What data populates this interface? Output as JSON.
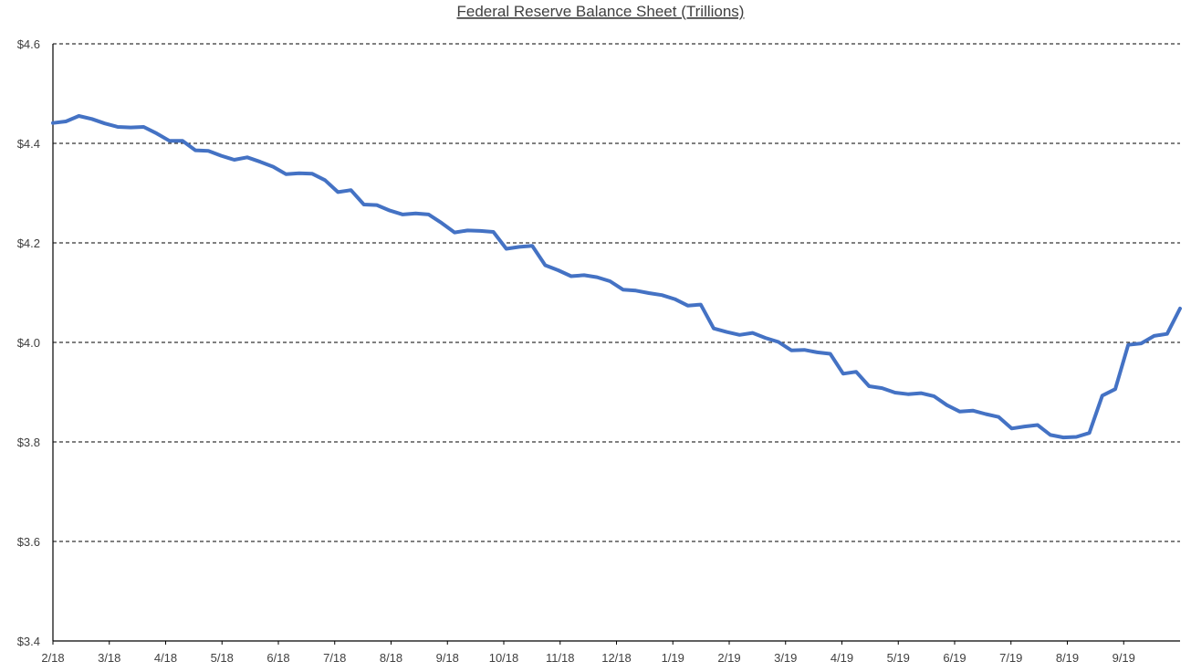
{
  "chart_data": {
    "type": "line",
    "title": "Federal Reserve Balance Sheet (Trillions)",
    "xlabel": "",
    "ylabel": "",
    "ylim": [
      3.4,
      4.6
    ],
    "y_ticks": [
      3.4,
      3.6,
      3.8,
      4.0,
      4.2,
      4.4,
      4.6
    ],
    "y_tick_labels": [
      "$3.4",
      "$3.6",
      "$3.8",
      "$4.0",
      "$4.2",
      "$4.4",
      "$4.6"
    ],
    "x_tick_labels": [
      "2/18",
      "3/18",
      "4/18",
      "5/18",
      "6/18",
      "7/18",
      "8/18",
      "9/18",
      "10/18",
      "11/18",
      "12/18",
      "1/19",
      "2/19",
      "3/19",
      "4/19",
      "5/19",
      "6/19",
      "7/19",
      "8/19",
      "9/19"
    ],
    "grid": "horizontal dashed",
    "legend": "none",
    "series": [
      {
        "color": "#4472C4",
        "values": [
          4.441,
          4.444,
          4.455,
          4.449,
          4.44,
          4.433,
          4.432,
          4.433,
          4.42,
          4.405,
          4.405,
          4.386,
          4.385,
          4.375,
          4.367,
          4.372,
          4.363,
          4.353,
          4.338,
          4.34,
          4.339,
          4.326,
          4.302,
          4.306,
          4.277,
          4.276,
          4.265,
          4.257,
          4.259,
          4.257,
          4.24,
          4.221,
          4.225,
          4.224,
          4.222,
          4.188,
          4.192,
          4.194,
          4.155,
          4.145,
          4.133,
          4.135,
          4.131,
          4.123,
          4.106,
          4.104,
          4.099,
          4.095,
          4.087,
          4.074,
          4.076,
          4.028,
          4.021,
          4.015,
          4.019,
          4.009,
          4.001,
          3.984,
          3.985,
          3.98,
          3.977,
          3.937,
          3.941,
          3.912,
          3.908,
          3.899,
          3.896,
          3.898,
          3.892,
          3.874,
          3.861,
          3.863,
          3.856,
          3.85,
          3.827,
          3.831,
          3.834,
          3.814,
          3.809,
          3.81,
          3.818,
          3.893,
          3.906,
          3.995,
          3.998,
          4.013,
          4.017,
          4.068
        ]
      }
    ]
  }
}
